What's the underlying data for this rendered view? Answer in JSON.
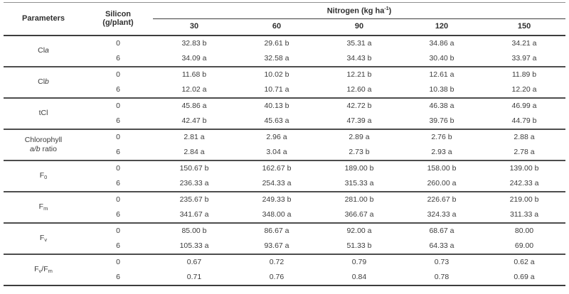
{
  "table": {
    "header": {
      "parameters_label": "Parameters",
      "silicon_line1": "Silicon",
      "silicon_line2": "(g/plant)",
      "nitrogen_prefix": "Nitrogen (kg ha",
      "nitrogen_sup": "-1",
      "nitrogen_suffix": ")",
      "nitrogen_levels": [
        "30",
        "60",
        "90",
        "120",
        "150"
      ]
    },
    "groups": [
      {
        "param": [
          [
            {
              "t": "Cl"
            },
            {
              "t": "a",
              "i": 1
            }
          ]
        ],
        "rows": [
          {
            "silicon": "0",
            "values": [
              "32.83 b",
              "29.61 b",
              "35.31 a",
              "34.86 a",
              "34.21 a"
            ]
          },
          {
            "silicon": "6",
            "values": [
              "34.09 a",
              "32.58 a",
              "34.43 b",
              "30.40 b",
              "33.97 a"
            ]
          }
        ]
      },
      {
        "param": [
          [
            {
              "t": "Cl"
            },
            {
              "t": "b",
              "i": 1
            }
          ]
        ],
        "rows": [
          {
            "silicon": "0",
            "values": [
              "11.68 b",
              "10.02 b",
              "12.21 b",
              "12.61 a",
              "11.89 b"
            ]
          },
          {
            "silicon": "6",
            "values": [
              "12.02 a",
              "10.71 a",
              "12.60 a",
              "10.38 b",
              "12.20 a"
            ]
          }
        ]
      },
      {
        "param": [
          [
            {
              "t": "tCl"
            }
          ]
        ],
        "rows": [
          {
            "silicon": "0",
            "values": [
              "45.86 a",
              "40.13 b",
              "42.72 b",
              "46.38 a",
              "46.99 a"
            ]
          },
          {
            "silicon": "6",
            "values": [
              "42.47 b",
              "45.63 a",
              "47.39 a",
              "39.76 b",
              "44.79 b"
            ]
          }
        ]
      },
      {
        "param": [
          [
            {
              "t": "Chlorophyll"
            }
          ],
          [
            {
              "t": "a/b",
              "i": 1
            },
            {
              "t": " ratio"
            }
          ]
        ],
        "rows": [
          {
            "silicon": "0",
            "values": [
              "2.81 a",
              "2.96 a",
              "2.89 a",
              "2.76 b",
              "2.88 a"
            ]
          },
          {
            "silicon": "6",
            "values": [
              "2.84 a",
              "3.04 a",
              "2.73 b",
              "2.93 a",
              "2.78 a"
            ]
          }
        ]
      },
      {
        "param": [
          [
            {
              "t": "F"
            },
            {
              "t": "0",
              "sub": 1
            }
          ]
        ],
        "rows": [
          {
            "silicon": "0",
            "values": [
              "150.67 b",
              "162.67 b",
              "189.00 b",
              "158.00 b",
              "139.00 b"
            ]
          },
          {
            "silicon": "6",
            "values": [
              "236.33 a",
              "254.33 a",
              "315.33 a",
              "260.00 a",
              "242.33 a"
            ]
          }
        ]
      },
      {
        "param": [
          [
            {
              "t": "F"
            },
            {
              "t": "m",
              "sub": 1
            }
          ]
        ],
        "rows": [
          {
            "silicon": "0",
            "values": [
              "235.67 b",
              "249.33 b",
              "281.00 b",
              "226.67 b",
              "219.00 b"
            ]
          },
          {
            "silicon": "6",
            "values": [
              "341.67 a",
              "348.00 a",
              "366.67 a",
              "324.33 a",
              "311.33 a"
            ]
          }
        ]
      },
      {
        "param": [
          [
            {
              "t": "F"
            },
            {
              "t": "v",
              "sub": 1
            }
          ]
        ],
        "rows": [
          {
            "silicon": "0",
            "values": [
              "85.00 b",
              "86.67 a",
              "92.00 a",
              "68.67 a",
              "80.00"
            ]
          },
          {
            "silicon": "6",
            "values": [
              "105.33 a",
              "93.67 a",
              "51.33 b",
              "64.33 a",
              "69.00"
            ]
          }
        ]
      },
      {
        "param": [
          [
            {
              "t": "F"
            },
            {
              "t": "v",
              "sub": 1
            },
            {
              "t": "/F"
            },
            {
              "t": "m",
              "sub": 1
            }
          ]
        ],
        "rows": [
          {
            "silicon": "0",
            "values": [
              "0.67",
              "0.72",
              "0.79",
              "0.73",
              "0.62 a"
            ]
          },
          {
            "silicon": "6",
            "values": [
              "0.71",
              "0.76",
              "0.84",
              "0.78",
              "0.69 a"
            ]
          }
        ]
      }
    ]
  }
}
